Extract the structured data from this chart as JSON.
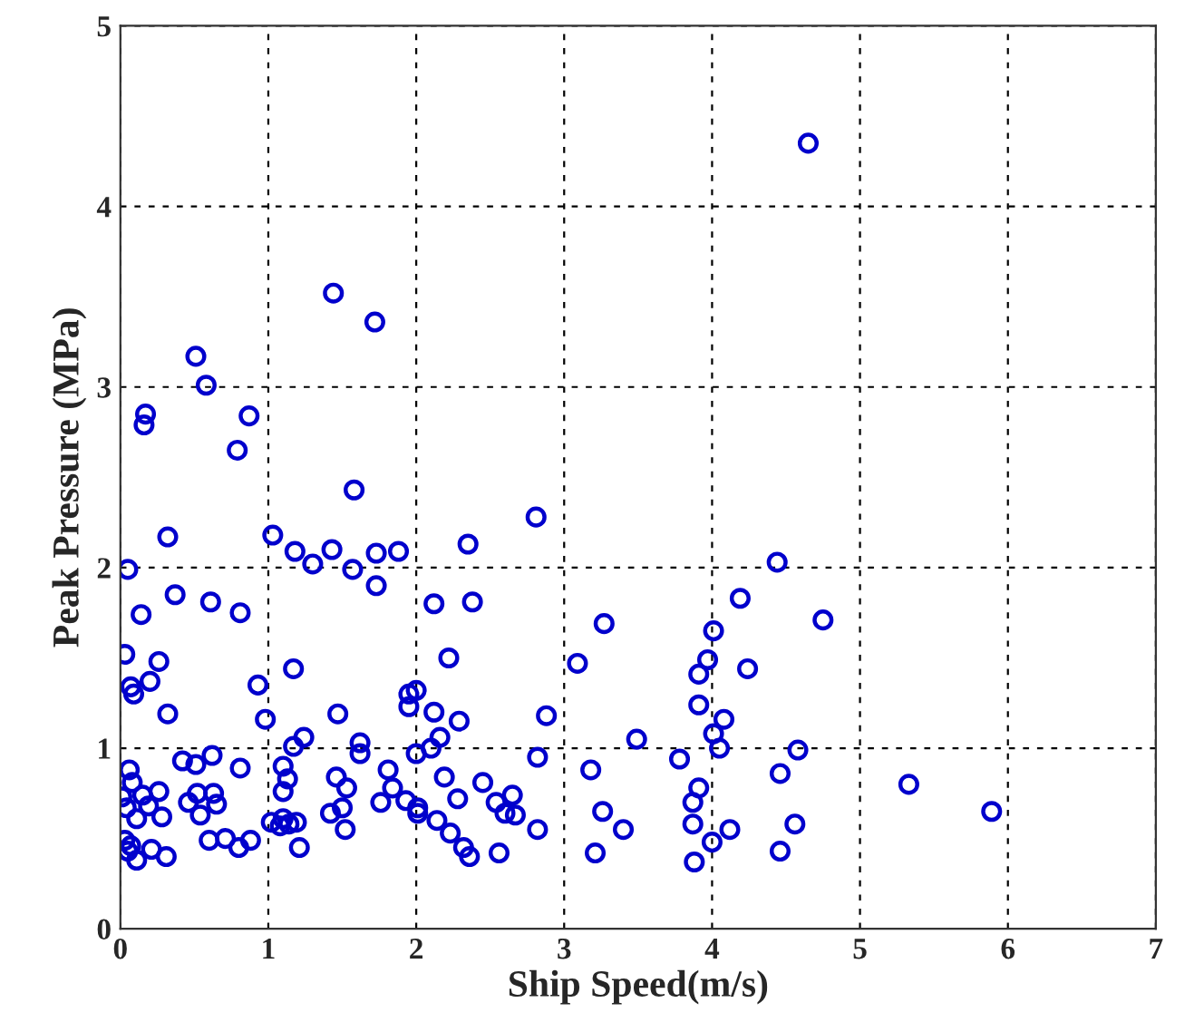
{
  "chart_data": {
    "type": "scatter",
    "xlabel": "Ship Speed(m/s)",
    "ylabel": "Peak Pressure (MPa)",
    "xlim": [
      0,
      7
    ],
    "ylim": [
      0,
      5
    ],
    "xticks": [
      0,
      1,
      2,
      3,
      4,
      5,
      6,
      7
    ],
    "yticks": [
      0,
      1,
      2,
      3,
      4,
      5
    ],
    "grid": true,
    "marker": "circle",
    "series": [
      {
        "color": "#0000cc",
        "x": [
          1.44,
          1.72,
          0.51,
          0.58,
          0.17,
          0.16,
          0.87,
          0.79,
          1.58,
          2.81,
          4.65,
          4.44,
          4.19,
          4.75,
          3.27,
          4.01,
          3.97,
          3.91,
          4.24,
          3.91,
          4.08,
          4.01,
          4.05,
          3.49,
          3.78,
          4.58,
          4.46,
          3.91,
          3.87,
          3.26,
          3.4,
          3.87,
          4.12,
          4.0,
          4.56,
          4.46,
          3.88,
          3.21,
          5.33,
          5.89,
          3.18,
          0.32,
          1.03,
          1.18,
          1.3,
          1.43,
          1.57,
          1.73,
          1.73,
          1.88,
          2.35,
          0.05,
          0.37,
          0.61,
          0.81,
          0.14,
          2.12,
          2.38,
          0.03,
          0.26,
          0.07,
          0.09,
          0.2,
          0.32,
          0.93,
          1.17,
          0.98,
          1.47,
          2.22,
          3.09,
          1.95,
          2.0,
          1.95,
          2.12,
          2.29,
          2.88,
          1.17,
          1.24,
          1.62,
          1.62,
          2.16,
          2.1,
          2.0,
          2.82,
          0.06,
          0.08,
          0.42,
          0.51,
          0.62,
          0.81,
          1.1,
          1.13,
          1.46,
          1.53,
          1.81,
          1.84,
          2.19,
          2.45,
          0.01,
          0.15,
          0.26,
          0.19,
          0.04,
          0.11,
          0.28,
          0.46,
          0.52,
          0.63,
          0.65,
          0.54,
          1.1,
          1.76,
          1.93,
          2.01,
          2.01,
          2.28,
          2.54,
          2.65,
          2.6,
          2.67,
          1.42,
          1.5,
          1.52,
          1.02,
          1.08,
          1.14,
          1.19,
          1.1,
          2.14,
          2.23,
          2.32,
          2.36,
          2.56,
          2.82,
          1.21,
          0.6,
          0.71,
          0.8,
          0.88,
          0.03,
          0.07,
          0.05,
          0.11,
          0.21,
          0.31
        ],
        "values": [
          3.52,
          3.36,
          3.17,
          3.01,
          2.85,
          2.79,
          2.84,
          2.65,
          2.43,
          2.28,
          4.35,
          2.03,
          1.83,
          1.71,
          1.69,
          1.65,
          1.49,
          1.41,
          1.44,
          1.24,
          1.16,
          1.08,
          1.0,
          1.05,
          0.94,
          0.99,
          0.86,
          0.78,
          0.7,
          0.65,
          0.55,
          0.58,
          0.55,
          0.48,
          0.58,
          0.43,
          0.37,
          0.42,
          0.8,
          0.65,
          0.88,
          2.17,
          2.18,
          2.09,
          2.02,
          2.1,
          1.99,
          2.08,
          1.9,
          2.09,
          2.13,
          1.99,
          1.85,
          1.81,
          1.75,
          1.74,
          1.8,
          1.81,
          1.52,
          1.48,
          1.34,
          1.3,
          1.37,
          1.19,
          1.35,
          1.44,
          1.16,
          1.19,
          1.5,
          1.47,
          1.3,
          1.32,
          1.23,
          1.2,
          1.15,
          1.18,
          1.01,
          1.06,
          1.03,
          0.97,
          1.06,
          1.0,
          0.97,
          0.95,
          0.88,
          0.81,
          0.93,
          0.91,
          0.96,
          0.89,
          0.9,
          0.83,
          0.84,
          0.78,
          0.88,
          0.78,
          0.84,
          0.81,
          0.73,
          0.74,
          0.76,
          0.68,
          0.67,
          0.61,
          0.62,
          0.7,
          0.75,
          0.75,
          0.69,
          0.63,
          0.76,
          0.7,
          0.71,
          0.67,
          0.64,
          0.72,
          0.7,
          0.74,
          0.64,
          0.63,
          0.64,
          0.67,
          0.55,
          0.59,
          0.57,
          0.58,
          0.59,
          0.61,
          0.6,
          0.53,
          0.45,
          0.4,
          0.42,
          0.55,
          0.45,
          0.49,
          0.5,
          0.45,
          0.49,
          0.49,
          0.46,
          0.43,
          0.38,
          0.44,
          0.4
        ]
      }
    ]
  }
}
